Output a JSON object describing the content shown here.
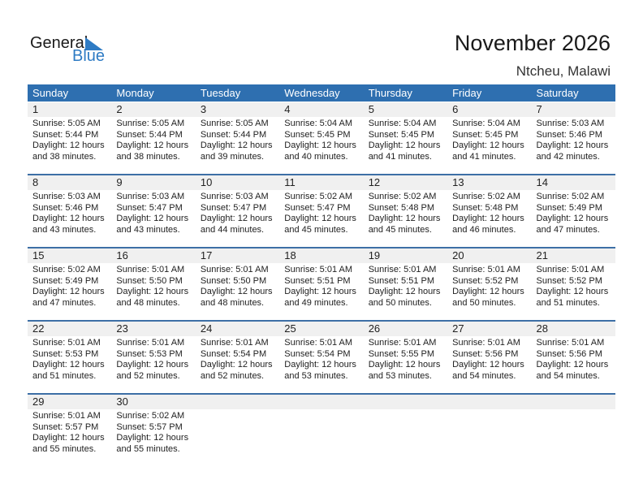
{
  "logo": {
    "general": "General",
    "blue": "Blue"
  },
  "title": "November 2026",
  "location": "Ntcheu, Malawi",
  "colors": {
    "header": "#2e6fb0",
    "logo_blue": "#2e7bc4"
  },
  "weekdays": [
    "Sunday",
    "Monday",
    "Tuesday",
    "Wednesday",
    "Thursday",
    "Friday",
    "Saturday"
  ],
  "weeks": [
    [
      {
        "day": "1",
        "sunrise": "Sunrise: 5:05 AM",
        "sunset": "Sunset: 5:44 PM",
        "daylight": "Daylight: 12 hours",
        "minutes": "and 38 minutes."
      },
      {
        "day": "2",
        "sunrise": "Sunrise: 5:05 AM",
        "sunset": "Sunset: 5:44 PM",
        "daylight": "Daylight: 12 hours",
        "minutes": "and 38 minutes."
      },
      {
        "day": "3",
        "sunrise": "Sunrise: 5:05 AM",
        "sunset": "Sunset: 5:44 PM",
        "daylight": "Daylight: 12 hours",
        "minutes": "and 39 minutes."
      },
      {
        "day": "4",
        "sunrise": "Sunrise: 5:04 AM",
        "sunset": "Sunset: 5:45 PM",
        "daylight": "Daylight: 12 hours",
        "minutes": "and 40 minutes."
      },
      {
        "day": "5",
        "sunrise": "Sunrise: 5:04 AM",
        "sunset": "Sunset: 5:45 PM",
        "daylight": "Daylight: 12 hours",
        "minutes": "and 41 minutes."
      },
      {
        "day": "6",
        "sunrise": "Sunrise: 5:04 AM",
        "sunset": "Sunset: 5:45 PM",
        "daylight": "Daylight: 12 hours",
        "minutes": "and 41 minutes."
      },
      {
        "day": "7",
        "sunrise": "Sunrise: 5:03 AM",
        "sunset": "Sunset: 5:46 PM",
        "daylight": "Daylight: 12 hours",
        "minutes": "and 42 minutes."
      }
    ],
    [
      {
        "day": "8",
        "sunrise": "Sunrise: 5:03 AM",
        "sunset": "Sunset: 5:46 PM",
        "daylight": "Daylight: 12 hours",
        "minutes": "and 43 minutes."
      },
      {
        "day": "9",
        "sunrise": "Sunrise: 5:03 AM",
        "sunset": "Sunset: 5:47 PM",
        "daylight": "Daylight: 12 hours",
        "minutes": "and 43 minutes."
      },
      {
        "day": "10",
        "sunrise": "Sunrise: 5:03 AM",
        "sunset": "Sunset: 5:47 PM",
        "daylight": "Daylight: 12 hours",
        "minutes": "and 44 minutes."
      },
      {
        "day": "11",
        "sunrise": "Sunrise: 5:02 AM",
        "sunset": "Sunset: 5:47 PM",
        "daylight": "Daylight: 12 hours",
        "minutes": "and 45 minutes."
      },
      {
        "day": "12",
        "sunrise": "Sunrise: 5:02 AM",
        "sunset": "Sunset: 5:48 PM",
        "daylight": "Daylight: 12 hours",
        "minutes": "and 45 minutes."
      },
      {
        "day": "13",
        "sunrise": "Sunrise: 5:02 AM",
        "sunset": "Sunset: 5:48 PM",
        "daylight": "Daylight: 12 hours",
        "minutes": "and 46 minutes."
      },
      {
        "day": "14",
        "sunrise": "Sunrise: 5:02 AM",
        "sunset": "Sunset: 5:49 PM",
        "daylight": "Daylight: 12 hours",
        "minutes": "and 47 minutes."
      }
    ],
    [
      {
        "day": "15",
        "sunrise": "Sunrise: 5:02 AM",
        "sunset": "Sunset: 5:49 PM",
        "daylight": "Daylight: 12 hours",
        "minutes": "and 47 minutes."
      },
      {
        "day": "16",
        "sunrise": "Sunrise: 5:01 AM",
        "sunset": "Sunset: 5:50 PM",
        "daylight": "Daylight: 12 hours",
        "minutes": "and 48 minutes."
      },
      {
        "day": "17",
        "sunrise": "Sunrise: 5:01 AM",
        "sunset": "Sunset: 5:50 PM",
        "daylight": "Daylight: 12 hours",
        "minutes": "and 48 minutes."
      },
      {
        "day": "18",
        "sunrise": "Sunrise: 5:01 AM",
        "sunset": "Sunset: 5:51 PM",
        "daylight": "Daylight: 12 hours",
        "minutes": "and 49 minutes."
      },
      {
        "day": "19",
        "sunrise": "Sunrise: 5:01 AM",
        "sunset": "Sunset: 5:51 PM",
        "daylight": "Daylight: 12 hours",
        "minutes": "and 50 minutes."
      },
      {
        "day": "20",
        "sunrise": "Sunrise: 5:01 AM",
        "sunset": "Sunset: 5:52 PM",
        "daylight": "Daylight: 12 hours",
        "minutes": "and 50 minutes."
      },
      {
        "day": "21",
        "sunrise": "Sunrise: 5:01 AM",
        "sunset": "Sunset: 5:52 PM",
        "daylight": "Daylight: 12 hours",
        "minutes": "and 51 minutes."
      }
    ],
    [
      {
        "day": "22",
        "sunrise": "Sunrise: 5:01 AM",
        "sunset": "Sunset: 5:53 PM",
        "daylight": "Daylight: 12 hours",
        "minutes": "and 51 minutes."
      },
      {
        "day": "23",
        "sunrise": "Sunrise: 5:01 AM",
        "sunset": "Sunset: 5:53 PM",
        "daylight": "Daylight: 12 hours",
        "minutes": "and 52 minutes."
      },
      {
        "day": "24",
        "sunrise": "Sunrise: 5:01 AM",
        "sunset": "Sunset: 5:54 PM",
        "daylight": "Daylight: 12 hours",
        "minutes": "and 52 minutes."
      },
      {
        "day": "25",
        "sunrise": "Sunrise: 5:01 AM",
        "sunset": "Sunset: 5:54 PM",
        "daylight": "Daylight: 12 hours",
        "minutes": "and 53 minutes."
      },
      {
        "day": "26",
        "sunrise": "Sunrise: 5:01 AM",
        "sunset": "Sunset: 5:55 PM",
        "daylight": "Daylight: 12 hours",
        "minutes": "and 53 minutes."
      },
      {
        "day": "27",
        "sunrise": "Sunrise: 5:01 AM",
        "sunset": "Sunset: 5:56 PM",
        "daylight": "Daylight: 12 hours",
        "minutes": "and 54 minutes."
      },
      {
        "day": "28",
        "sunrise": "Sunrise: 5:01 AM",
        "sunset": "Sunset: 5:56 PM",
        "daylight": "Daylight: 12 hours",
        "minutes": "and 54 minutes."
      }
    ],
    [
      {
        "day": "29",
        "sunrise": "Sunrise: 5:01 AM",
        "sunset": "Sunset: 5:57 PM",
        "daylight": "Daylight: 12 hours",
        "minutes": "and 55 minutes."
      },
      {
        "day": "30",
        "sunrise": "Sunrise: 5:02 AM",
        "sunset": "Sunset: 5:57 PM",
        "daylight": "Daylight: 12 hours",
        "minutes": "and 55 minutes."
      }
    ]
  ]
}
